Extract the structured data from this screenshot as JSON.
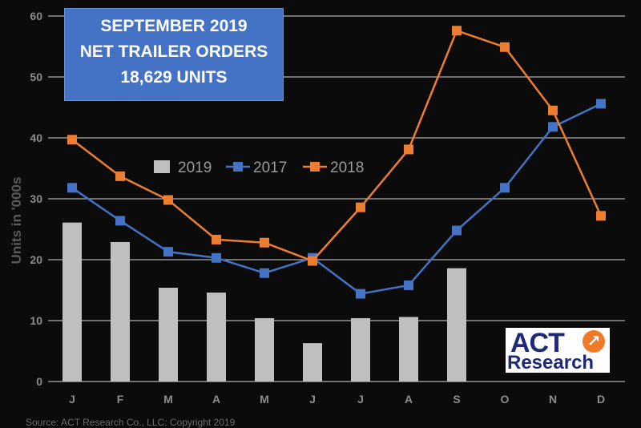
{
  "title_box": {
    "line1": "SEPTEMBER 2019",
    "line2": "NET TRAILER ORDERS",
    "line3": "18,629 UNITS"
  },
  "logo": {
    "top": "ACT",
    "bottom": "Research",
    "mark": "arrow-icon"
  },
  "source": "Source: ACT Research Co., LLC: Copyright 2019",
  "colors": {
    "background": "#0b0b0b",
    "bar_2019": "#bfbfbf",
    "line_2017": "#4472c4",
    "line_2018": "#ed7d31",
    "gridline": "#d9d9d9",
    "axis_text": "#8c8c8c"
  },
  "chart_data": {
    "type": "bar+line",
    "ylabel": "Units in '000s",
    "ylim": [
      0,
      60
    ],
    "yticks": [
      0,
      10,
      20,
      30,
      40,
      50,
      60
    ],
    "categories": [
      "J",
      "F",
      "M",
      "A",
      "M",
      "J",
      "J",
      "A",
      "S",
      "O",
      "N",
      "D"
    ],
    "grid": true,
    "legend_position": "middle-left",
    "series": [
      {
        "name": "2019",
        "kind": "bar",
        "values": [
          26.1,
          22.9,
          15.4,
          14.6,
          10.4,
          6.3,
          10.4,
          10.6,
          18.6,
          null,
          null,
          null
        ]
      },
      {
        "name": "2017",
        "kind": "line",
        "values": [
          31.8,
          26.4,
          21.3,
          20.3,
          17.8,
          20.3,
          14.4,
          15.8,
          24.8,
          31.8,
          41.8,
          45.6
        ]
      },
      {
        "name": "2018",
        "kind": "line",
        "values": [
          39.7,
          33.7,
          29.8,
          23.3,
          22.8,
          19.8,
          28.6,
          38.1,
          57.6,
          54.9,
          44.5,
          27.2
        ]
      }
    ]
  }
}
